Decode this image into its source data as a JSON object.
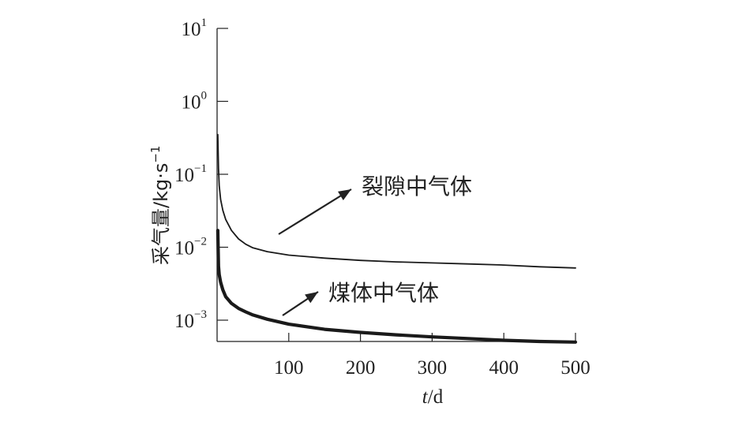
{
  "chart_data": {
    "type": "line",
    "xlabel_italic": "t",
    "xlabel_rest": "/d",
    "ylabel_main": "采气量/kg·s",
    "ylabel_exp": "−1",
    "xlim": [
      0,
      500
    ],
    "ylim": [
      0.0005,
      10
    ],
    "yscale": "log",
    "grid": false,
    "x_ticks": [
      {
        "value": 100,
        "label": "100"
      },
      {
        "value": 200,
        "label": "200"
      },
      {
        "value": 300,
        "label": "300"
      },
      {
        "value": 400,
        "label": "400"
      },
      {
        "value": 500,
        "label": "500"
      }
    ],
    "y_ticks": [
      {
        "value": 10,
        "base": "10",
        "exp": "1"
      },
      {
        "value": 1,
        "base": "10",
        "exp": "0"
      },
      {
        "value": 0.1,
        "base": "10",
        "exp": "−1"
      },
      {
        "value": 0.01,
        "base": "10",
        "exp": "−2"
      },
      {
        "value": 0.001,
        "base": "10",
        "exp": "−3"
      }
    ],
    "series": [
      {
        "name": "裂隙中气体",
        "stroke": "#1a1a1a",
        "x": [
          1,
          2,
          3,
          5,
          8,
          12,
          20,
          30,
          40,
          50,
          70,
          100,
          150,
          200,
          250,
          300,
          350,
          400,
          450,
          500
        ],
        "y": [
          0.35,
          0.12,
          0.07,
          0.045,
          0.032,
          0.024,
          0.017,
          0.013,
          0.011,
          0.0098,
          0.0087,
          0.0078,
          0.0071,
          0.0066,
          0.0063,
          0.0061,
          0.0059,
          0.0057,
          0.0054,
          0.0052
        ]
      },
      {
        "name": "煤体中气体",
        "stroke": "#1a1a1a",
        "x": [
          1,
          2,
          3,
          5,
          8,
          12,
          20,
          30,
          40,
          50,
          70,
          100,
          150,
          200,
          250,
          300,
          350,
          400,
          450,
          500
        ],
        "y": [
          0.017,
          0.0055,
          0.0042,
          0.0033,
          0.0026,
          0.0021,
          0.0017,
          0.00145,
          0.0013,
          0.00118,
          0.00103,
          0.00088,
          0.00075,
          0.00068,
          0.00063,
          0.00059,
          0.00056,
          0.00053,
          0.00051,
          0.0005
        ]
      }
    ],
    "annotations": [
      {
        "text": "裂隙中气体",
        "series_index": 0,
        "point_x": 88,
        "point_y": 0.0091
      },
      {
        "text": "煤体中气体",
        "series_index": 1,
        "point_x": 95,
        "point_y": 0.00097
      }
    ]
  }
}
